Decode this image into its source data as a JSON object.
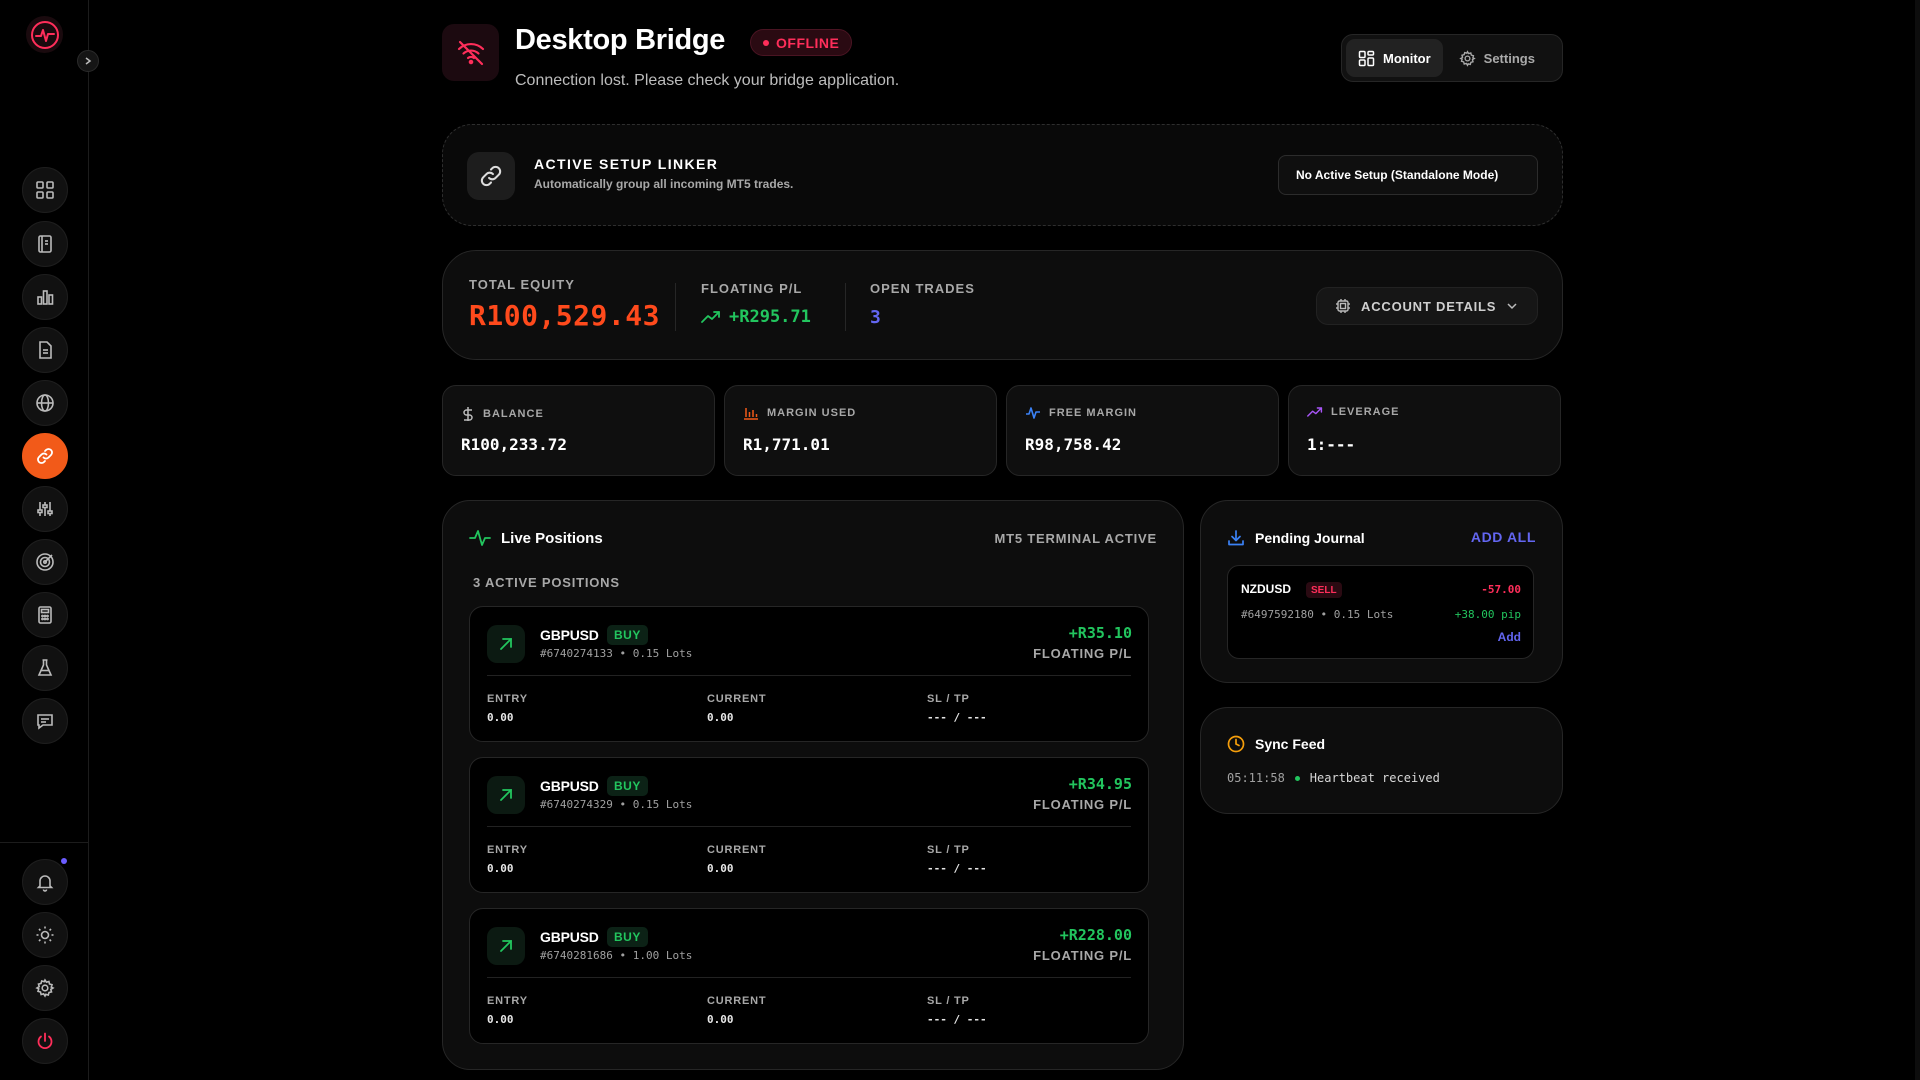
{
  "colors": {
    "accent": "#f25a19",
    "danger": "#ff2e5a",
    "positive": "#22c55e",
    "indigo": "#6366f1",
    "bg": "#000000",
    "panel": "#0d0d0d"
  },
  "sidebar": {
    "logo_icon": "pulse-logo-icon",
    "items": [
      {
        "icon": "dashboard-grid-icon",
        "active": false
      },
      {
        "icon": "journal-book-icon",
        "active": false
      },
      {
        "icon": "bar-chart-icon",
        "active": false
      },
      {
        "icon": "document-icon",
        "active": false
      },
      {
        "icon": "globe-icon",
        "active": false
      },
      {
        "icon": "link-icon",
        "active": true
      },
      {
        "icon": "sliders-icon",
        "active": false
      },
      {
        "icon": "target-icon",
        "active": false
      },
      {
        "icon": "calculator-icon",
        "active": false
      },
      {
        "icon": "flask-icon",
        "active": false
      },
      {
        "icon": "chat-icon",
        "active": false
      }
    ],
    "bottom": [
      "bell-icon",
      "sun-icon",
      "gear-icon",
      "power-icon"
    ]
  },
  "header": {
    "title": "Desktop Bridge",
    "status": "OFFLINE",
    "subtitle": "Connection lost. Please check your bridge application.",
    "tabs": [
      {
        "label": "Monitor",
        "active": true
      },
      {
        "label": "Settings",
        "active": false
      }
    ]
  },
  "linker": {
    "title": "ACTIVE SETUP LINKER",
    "subtitle": "Automatically group all incoming MT5 trades.",
    "selected": "No Active Setup (Standalone Mode)"
  },
  "equity": {
    "total_label": "TOTAL EQUITY",
    "total_value": "R100,529.43",
    "floating_label": "FLOATING P/L",
    "floating_value": "+R295.71",
    "open_label": "OPEN TRADES",
    "open_value": "3",
    "account_button": "ACCOUNT DETAILS"
  },
  "stats": [
    {
      "label": "BALANCE",
      "value": "R100,233.72",
      "icon": "dollar-icon"
    },
    {
      "label": "MARGIN USED",
      "value": "R1,771.01",
      "icon": "bars-icon"
    },
    {
      "label": "FREE MARGIN",
      "value": "R98,758.42",
      "icon": "pulse-icon"
    },
    {
      "label": "LEVERAGE",
      "value": "1:---",
      "icon": "trend-up-icon"
    }
  ],
  "live": {
    "title": "Live Positions",
    "status": "MT5 TERMINAL ACTIVE",
    "count": "3 ACTIVE POSITIONS",
    "pl_label": "FLOATING P/L",
    "entry_label": "ENTRY",
    "current_label": "CURRENT",
    "sltp_label": "SL / TP",
    "positions": [
      {
        "symbol": "GBPUSD",
        "side": "BUY",
        "meta": "#6740274133 • 0.15 Lots",
        "pl": "+R35.10",
        "entry": "0.00",
        "current": "0.00",
        "sltp": "--- / ---"
      },
      {
        "symbol": "GBPUSD",
        "side": "BUY",
        "meta": "#6740274329 • 0.15 Lots",
        "pl": "+R34.95",
        "entry": "0.00",
        "current": "0.00",
        "sltp": "--- / ---"
      },
      {
        "symbol": "GBPUSD",
        "side": "BUY",
        "meta": "#6740281686 • 1.00 Lots",
        "pl": "+R228.00",
        "entry": "0.00",
        "current": "0.00",
        "sltp": "--- / ---"
      }
    ]
  },
  "journal": {
    "title": "Pending Journal",
    "add_all": "ADD ALL",
    "item": {
      "symbol": "NZDUSD",
      "side": "SELL",
      "pl": "-57.00",
      "meta": "#6497592180 • 0.15 Lots",
      "pips": "+38.00 pip",
      "add": "Add"
    }
  },
  "sync": {
    "title": "Sync Feed",
    "time": "05:11:58",
    "message": "Heartbeat received"
  }
}
